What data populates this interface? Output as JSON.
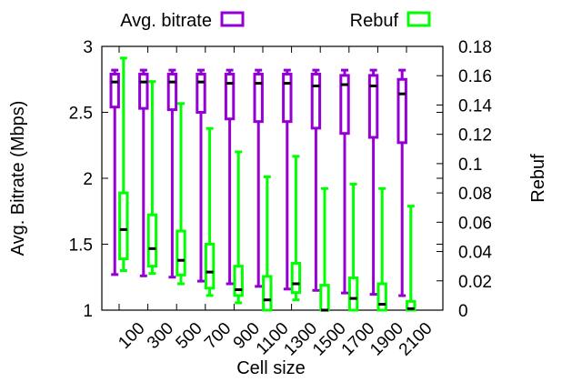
{
  "chart_data": {
    "type": "boxplot",
    "xlabel": "Cell size",
    "ylabel": "Avg. Bitrate (Mbps)",
    "y2label": "Rebuf",
    "categories": [
      "100",
      "300",
      "500",
      "700",
      "900",
      "1100",
      "1300",
      "1500",
      "1700",
      "1900",
      "2100"
    ],
    "ylim": [
      1,
      3
    ],
    "y2lim": [
      0,
      0.18
    ],
    "yticks": [
      "1",
      "1.5",
      "2",
      "2.5",
      "3"
    ],
    "y2ticks": [
      "0",
      "0.02",
      "0.04",
      "0.06",
      "0.08",
      "0.1",
      "0.12",
      "0.14",
      "0.16",
      "0.18"
    ],
    "legend_position": "top",
    "series": [
      {
        "name": "Avg. bitrate",
        "axis": "y",
        "color": "#9400d3",
        "min": [
          1.27,
          1.26,
          1.25,
          1.22,
          1.2,
          1.18,
          1.16,
          1.15,
          1.13,
          1.12,
          1.11
        ],
        "q1": [
          2.54,
          2.53,
          2.52,
          2.5,
          2.45,
          2.43,
          2.43,
          2.38,
          2.34,
          2.31,
          2.27
        ],
        "median": [
          2.73,
          2.73,
          2.73,
          2.73,
          2.72,
          2.72,
          2.72,
          2.7,
          2.71,
          2.7,
          2.64
        ],
        "q3": [
          2.79,
          2.79,
          2.79,
          2.79,
          2.79,
          2.79,
          2.79,
          2.79,
          2.78,
          2.78,
          2.75
        ],
        "max": [
          2.82,
          2.82,
          2.82,
          2.82,
          2.82,
          2.82,
          2.82,
          2.82,
          2.82,
          2.82,
          2.82
        ]
      },
      {
        "name": "Rebuf",
        "axis": "y2",
        "color": "#00ff00",
        "min": [
          0.027,
          0.025,
          0.018,
          0.01,
          0.005,
          0.003,
          0.007,
          0.0,
          0.0,
          0.0,
          0.0
        ],
        "q1": [
          0.035,
          0.03,
          0.024,
          0.015,
          0.01,
          0.0,
          0.012,
          0.0,
          0.0,
          0.0,
          0.0
        ],
        "median": [
          0.055,
          0.042,
          0.034,
          0.026,
          0.014,
          0.007,
          0.018,
          0.0,
          0.008,
          0.004,
          0.001
        ],
        "q3": [
          0.08,
          0.065,
          0.054,
          0.045,
          0.03,
          0.023,
          0.032,
          0.017,
          0.022,
          0.018,
          0.006
        ],
        "max": [
          0.172,
          0.156,
          0.141,
          0.124,
          0.108,
          0.091,
          0.105,
          0.083,
          0.086,
          0.083,
          0.071
        ]
      }
    ]
  }
}
